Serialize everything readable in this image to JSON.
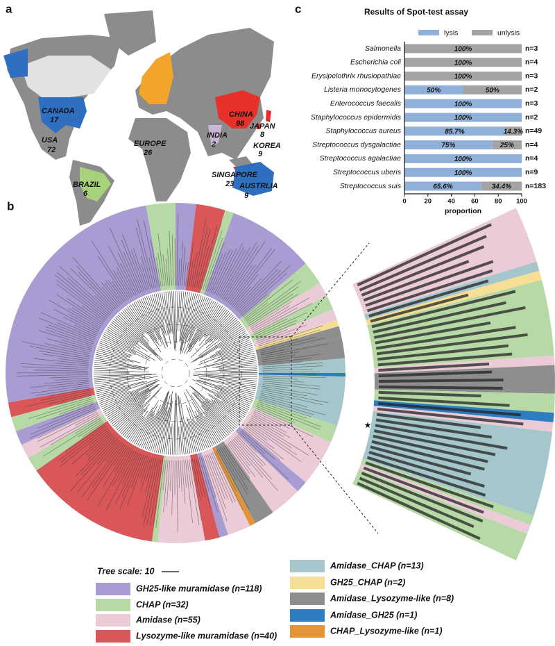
{
  "panel_labels": [
    "a",
    "b",
    "c"
  ],
  "map": {
    "regions": [
      {
        "name": "CANADA",
        "count": 17
      },
      {
        "name": "USA",
        "count": 72
      },
      {
        "name": "EUROPE",
        "count": 26
      },
      {
        "name": "CHINA",
        "count": 98
      },
      {
        "name": "JAPAN",
        "count": 8
      },
      {
        "name": "INDIA",
        "count": 2
      },
      {
        "name": "KOREA",
        "count": 9
      },
      {
        "name": "BRAZIL",
        "count": 6
      },
      {
        "name": "SINGAPORE",
        "count": 23
      },
      {
        "name": "AUSTRLIA",
        "count": 9
      }
    ]
  },
  "chart_data": {
    "type": "stacked-barh",
    "title": "Results of Spot-test assay",
    "x_label": "proportion",
    "categories": [
      "Salmonella",
      "Escherichia coli",
      "Erysipelothrix rhusiopathiae",
      "Listeria monocytogenes",
      "Enterococcus faecalis",
      "Staphylococcus epidermidis",
      "Staphylococcus aureus",
      "Streptococcus dysgalactiae",
      "Streptococcus agalactiae",
      "Streptococcus uberis",
      "Streptococcus suis"
    ],
    "n_labels": [
      "n=3",
      "n=4",
      "n=3",
      "n=2",
      "n=3",
      "n=2",
      "n=49",
      "n=4",
      "n=4",
      "n=9",
      "n=183"
    ],
    "series": [
      {
        "name": "lysis",
        "color": "#8fb0d8",
        "values": [
          0,
          0,
          0,
          50,
          100,
          100,
          85.7,
          75,
          100,
          100,
          65.6
        ],
        "value_labels": [
          null,
          null,
          null,
          "50%",
          "100%",
          "100%",
          "85.7%",
          "75%",
          "100%",
          "100%",
          "65.6%"
        ]
      },
      {
        "name": "unlysis",
        "color": "#a3a3a3",
        "values": [
          100,
          100,
          100,
          50,
          0,
          0,
          14.3,
          25,
          0,
          0,
          34.4
        ],
        "value_labels": [
          "100%",
          "100%",
          "100%",
          "50%",
          null,
          null,
          "14.3%",
          "25%",
          null,
          null,
          "34.4%"
        ]
      }
    ],
    "xlim": [
      0,
      100
    ],
    "xticks": [
      0,
      20,
      40,
      60,
      80,
      100
    ]
  },
  "tree": {
    "scale_label": "Tree scale: 10",
    "legend": [
      {
        "name": "GH25-like  muramidase (n=118)",
        "color": "#a99cd2"
      },
      {
        "name": "CHAP (n=32)",
        "color": "#b6d9a5"
      },
      {
        "name": "Amidase (n=55)",
        "color": "#eccbd9"
      },
      {
        "name": "Lysozyme-like muramidase (n=40)",
        "color": "#d95759"
      },
      {
        "name": "Amidase_CHAP (n=13)",
        "color": "#a5c7cc"
      },
      {
        "name": "GH25_CHAP (n=2)",
        "color": "#f6df95"
      },
      {
        "name": "Amidase_Lysozyme-like (n=8)",
        "color": "#8e8e8e"
      },
      {
        "name": "Amidase_GH25 (n=1)",
        "color": "#2f7dc1"
      },
      {
        "name": "CHAP_Lysozyme-like (n=1)",
        "color": "#e39437"
      }
    ]
  }
}
